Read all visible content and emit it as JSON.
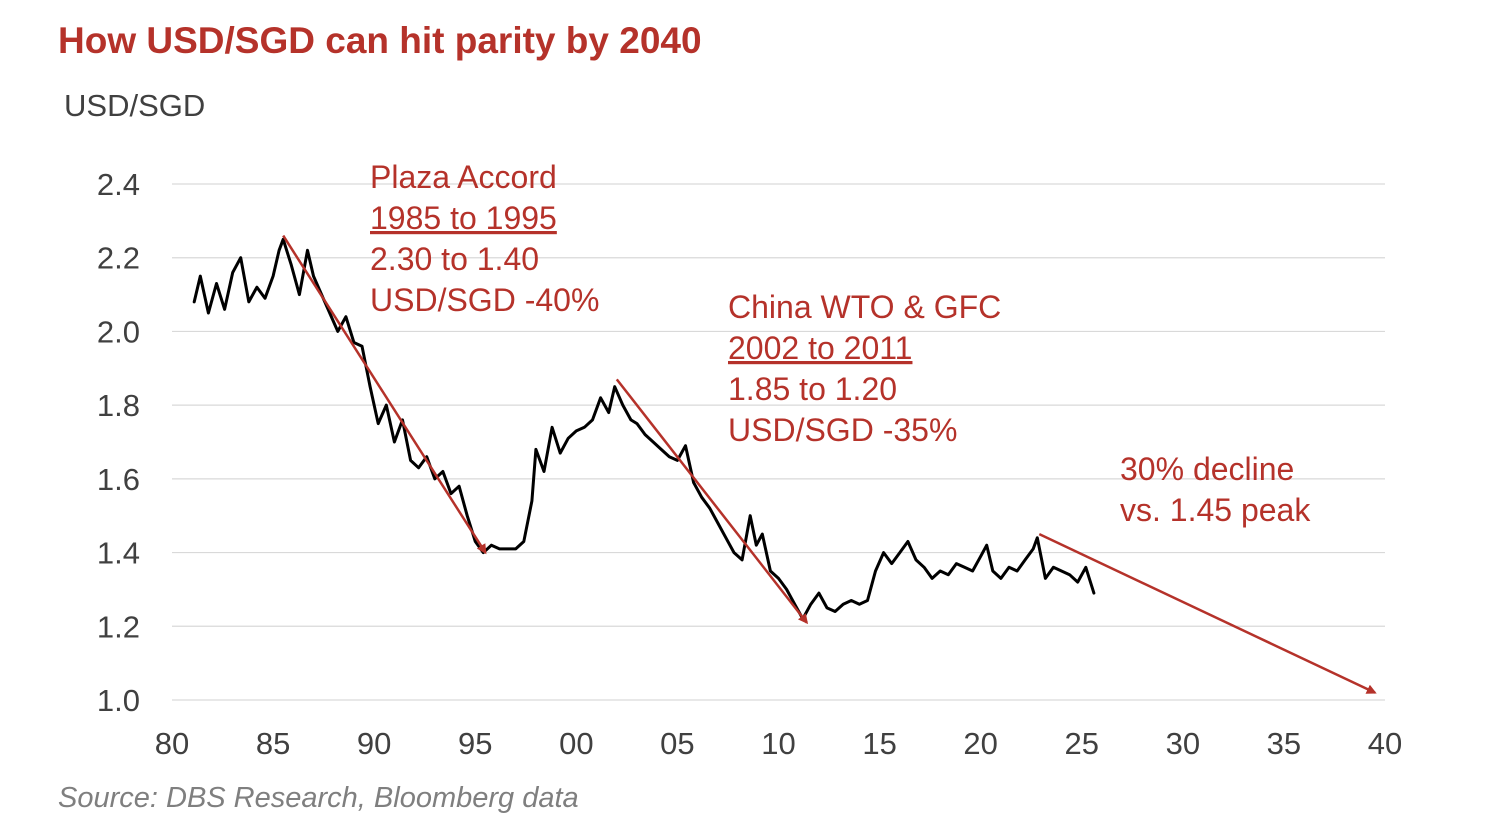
{
  "title": "How USD/SGD can hit parity by 2040",
  "source": "Source: DBS Research, Bloomberg data",
  "colors": {
    "accent": "#b5322a",
    "series": "#000000",
    "grid": "#d9d9d9",
    "text": "#404040"
  },
  "chart_data": {
    "type": "line",
    "title": "How USD/SGD can hit parity by 2040",
    "ylabel": "USD/SGD",
    "xlabel": "",
    "xlim": [
      80,
      40
    ],
    "ylim": [
      1.0,
      2.4
    ],
    "grid": true,
    "x_tick_labels": [
      "80",
      "85",
      "90",
      "95",
      "00",
      "05",
      "10",
      "15",
      "20",
      "25",
      "30",
      "35",
      "40"
    ],
    "y_tick_labels": [
      "2.4",
      "2.2",
      "2.0",
      "1.8",
      "1.6",
      "1.4",
      "1.2",
      "1.0"
    ],
    "series": [
      {
        "x": [
          "1981.1",
          "1981.4",
          "1981.8",
          "1982.2",
          "1982.6",
          "1983.0",
          "1983.4",
          "1983.8",
          "1984.2",
          "1984.6",
          "1985.0",
          "1985.3",
          "1985.5",
          "1985.9",
          "1986.3",
          "1986.7",
          "1987.0",
          "1987.4",
          "1987.8",
          "1988.2",
          "1988.6",
          "1989.0",
          "1989.4",
          "1989.8",
          "1990.2",
          "1990.6",
          "1991.0",
          "1991.4",
          "1991.8",
          "1992.2",
          "1992.6",
          "1993.0",
          "1993.4",
          "1993.8",
          "1994.2",
          "1994.6",
          "1995.0",
          "1995.4",
          "1995.8",
          "1996.2",
          "1996.6",
          "1997.0",
          "1997.4",
          "1997.8",
          "1998.0",
          "1998.4",
          "1998.8",
          "1999.2",
          "1999.6",
          "2000.0",
          "2000.4",
          "2000.8",
          "2001.2",
          "2001.6",
          "2001.9",
          "2002.3",
          "2002.7",
          "2003.0",
          "2003.4",
          "2003.8",
          "2004.2",
          "2004.6",
          "2005.0",
          "2005.4",
          "2005.8",
          "2006.2",
          "2006.6",
          "2007.0",
          "2007.4",
          "2007.8",
          "2008.2",
          "2008.6",
          "2008.9",
          "2009.2",
          "2009.6",
          "2010.0",
          "2010.4",
          "2010.8",
          "2011.2",
          "2011.6",
          "2012.0",
          "2012.4",
          "2012.8",
          "2013.2",
          "2013.6",
          "2014.0",
          "2014.4",
          "2014.8",
          "2015.2",
          "2015.6",
          "2016.0",
          "2016.4",
          "2016.8",
          "2017.2",
          "2017.6",
          "2018.0",
          "2018.4",
          "2018.8",
          "2019.2",
          "2019.6",
          "2020.0",
          "2020.3",
          "2020.6",
          "2021.0",
          "2021.4",
          "2021.8",
          "2022.2",
          "2022.6",
          "2022.8",
          "2023.2",
          "2023.6",
          "2024.0",
          "2024.4",
          "2024.8",
          "2025.2",
          "2025.6"
        ],
        "name": "",
        "values": [
          2.08,
          2.15,
          2.05,
          2.13,
          2.06,
          2.16,
          2.2,
          2.08,
          2.12,
          2.09,
          2.15,
          2.22,
          2.25,
          2.18,
          2.1,
          2.22,
          2.15,
          2.1,
          2.05,
          2.0,
          2.04,
          1.97,
          1.96,
          1.85,
          1.75,
          1.8,
          1.7,
          1.76,
          1.65,
          1.63,
          1.66,
          1.6,
          1.62,
          1.56,
          1.58,
          1.5,
          1.43,
          1.4,
          1.42,
          1.41,
          1.41,
          1.41,
          1.43,
          1.54,
          1.68,
          1.62,
          1.74,
          1.67,
          1.71,
          1.73,
          1.74,
          1.76,
          1.82,
          1.78,
          1.85,
          1.8,
          1.76,
          1.75,
          1.72,
          1.7,
          1.68,
          1.66,
          1.65,
          1.69,
          1.59,
          1.55,
          1.52,
          1.48,
          1.44,
          1.4,
          1.38,
          1.5,
          1.42,
          1.45,
          1.35,
          1.33,
          1.3,
          1.26,
          1.22,
          1.26,
          1.29,
          1.25,
          1.24,
          1.26,
          1.27,
          1.26,
          1.27,
          1.35,
          1.4,
          1.37,
          1.4,
          1.43,
          1.38,
          1.36,
          1.33,
          1.35,
          1.34,
          1.37,
          1.36,
          1.35,
          1.39,
          1.42,
          1.35,
          1.33,
          1.36,
          1.35,
          1.38,
          1.41,
          1.44,
          1.33,
          1.36,
          1.35,
          1.34,
          1.32,
          1.36,
          1.29
        ]
      }
    ],
    "arrows": [
      {
        "from": [
          1985.5,
          2.26
        ],
        "to": [
          1995.5,
          1.4
        ]
      },
      {
        "from": [
          2002.0,
          1.87
        ],
        "to": [
          2011.4,
          1.21
        ]
      },
      {
        "from": [
          2022.9,
          1.45
        ],
        "to": [
          2039.5,
          1.02
        ]
      }
    ],
    "annotations": [
      {
        "lines": [
          "Plaza Accord",
          "1985 to 1995",
          "2.30 to 1.40",
          "USD/SGD -40%"
        ],
        "underline": [
          1
        ]
      },
      {
        "lines": [
          "China WTO & GFC",
          "2002 to 2011",
          "1.85 to 1.20",
          "USD/SGD -35%"
        ],
        "underline": [
          1
        ]
      },
      {
        "lines": [
          "30% decline",
          "vs. 1.45 peak"
        ],
        "underline": []
      }
    ]
  }
}
